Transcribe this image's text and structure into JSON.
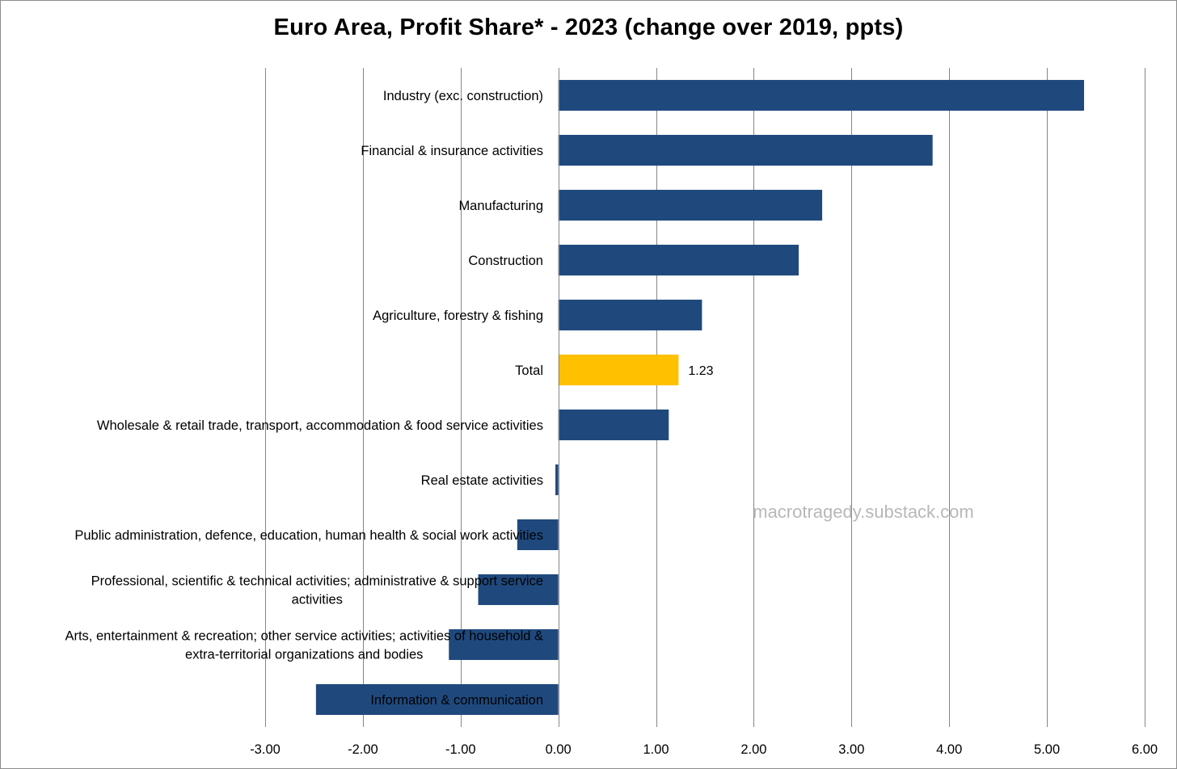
{
  "chart_data": {
    "type": "bar",
    "orientation": "horizontal",
    "title": "Euro Area, Profit Share* - 2023 (change over 2019, ppts)",
    "xlabel": "",
    "ylabel": "",
    "xlim": [
      -3.0,
      6.0
    ],
    "xticks": [
      -3,
      -2,
      -1,
      0,
      1,
      2,
      3,
      4,
      5,
      6
    ],
    "xtick_labels": [
      "-3.00",
      "-2.00",
      "-1.00",
      "0.00",
      "1.00",
      "2.00",
      "3.00",
      "4.00",
      "5.00",
      "6.00"
    ],
    "grid": "vertical",
    "watermark": "macrotragedy.substack.com",
    "categories": [
      [
        "Industry (exc. construction)"
      ],
      [
        "Financial & insurance activities"
      ],
      [
        "Manufacturing"
      ],
      [
        "Construction"
      ],
      [
        "Agriculture, forestry & fishing"
      ],
      [
        "Total"
      ],
      [
        "Wholesale & retail trade, transport, accommodation & food service activities"
      ],
      [
        "Real estate activities"
      ],
      [
        "Public administration, defence, education, human health & social work activities"
      ],
      [
        "Professional, scientific & technical activities; administrative & support service",
        "activities"
      ],
      [
        "Arts, entertainment & recreation; other service activities; activities of household &",
        "extra-territorial organizations and bodies"
      ],
      [
        "Information & communication"
      ]
    ],
    "values": [
      5.38,
      3.83,
      2.7,
      2.46,
      1.47,
      1.23,
      1.13,
      -0.03,
      -0.42,
      -0.82,
      -1.12,
      -2.48
    ],
    "highlight_index": 5,
    "data_labels": [
      {
        "index": 5,
        "text": "1.23"
      }
    ],
    "colors": {
      "bar": "#1f497d",
      "highlight": "#ffc000",
      "grid": "#868686",
      "axis": "#868686"
    }
  }
}
